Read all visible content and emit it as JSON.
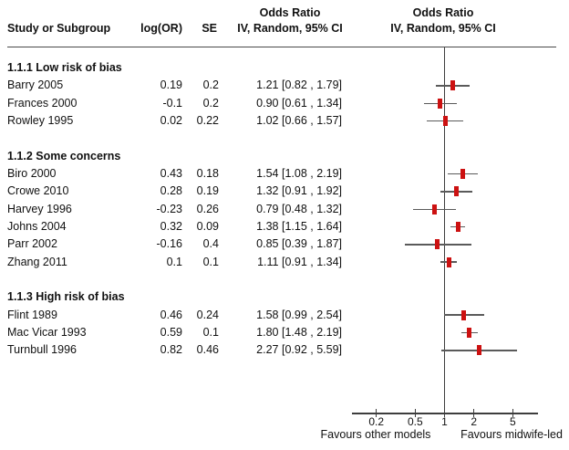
{
  "header": {
    "study": "Study or Subgroup",
    "log_or": "log(OR)",
    "se": "SE",
    "effect_line1": "Odds Ratio",
    "effect_line2": "IV, Random, 95% CI",
    "plot_line1": "Odds Ratio",
    "plot_line2": "IV, Random, 95% CI"
  },
  "colors": {
    "marker": "#cc1111",
    "ci_line": "#5a5a5a",
    "axis_line": "#3d3d3d",
    "header_rule": "#4a4a4a",
    "text": "#111111"
  },
  "chart_data": {
    "type": "forest",
    "effect_measure": "Odds Ratio",
    "model": "IV, Random, 95% CI",
    "x_scale": "log",
    "null_line": 1,
    "axis": {
      "ticks": [
        0.2,
        0.5,
        1,
        2,
        5
      ],
      "tick_labels": [
        "0.2",
        "0.5",
        "1",
        "2",
        "5"
      ],
      "favours_left": "Favours other models",
      "favours_right": "Favours midwife-led"
    },
    "groups": [
      {
        "label": "1.1.1 Low risk of bias",
        "studies": [
          {
            "name": "Barry 2005",
            "log_or": "0.19",
            "se": "0.2",
            "or": 1.21,
            "ci_low": 0.82,
            "ci_high": 1.79,
            "ci_text": "1.21 [0.82 , 1.79]"
          },
          {
            "name": "Frances 2000",
            "log_or": "-0.1",
            "se": "0.2",
            "or": 0.9,
            "ci_low": 0.61,
            "ci_high": 1.34,
            "ci_text": "0.90 [0.61 , 1.34]"
          },
          {
            "name": "Rowley 1995",
            "log_or": "0.02",
            "se": "0.22",
            "or": 1.02,
            "ci_low": 0.66,
            "ci_high": 1.57,
            "ci_text": "1.02 [0.66 , 1.57]"
          }
        ]
      },
      {
        "label": "1.1.2 Some concerns",
        "studies": [
          {
            "name": "Biro 2000",
            "log_or": "0.43",
            "se": "0.18",
            "or": 1.54,
            "ci_low": 1.08,
            "ci_high": 2.19,
            "ci_text": "1.54 [1.08 , 2.19]"
          },
          {
            "name": "Crowe 2010",
            "log_or": "0.28",
            "se": "0.19",
            "or": 1.32,
            "ci_low": 0.91,
            "ci_high": 1.92,
            "ci_text": "1.32 [0.91 , 1.92]"
          },
          {
            "name": "Harvey 1996",
            "log_or": "-0.23",
            "se": "0.26",
            "or": 0.79,
            "ci_low": 0.48,
            "ci_high": 1.32,
            "ci_text": "0.79 [0.48 , 1.32]"
          },
          {
            "name": "Johns 2004",
            "log_or": "0.32",
            "se": "0.09",
            "or": 1.38,
            "ci_low": 1.15,
            "ci_high": 1.64,
            "ci_text": "1.38 [1.15 , 1.64]"
          },
          {
            "name": "Parr 2002",
            "log_or": "-0.16",
            "se": "0.4",
            "or": 0.85,
            "ci_low": 0.39,
            "ci_high": 1.87,
            "ci_text": "0.85 [0.39 , 1.87]"
          },
          {
            "name": "Zhang 2011",
            "log_or": "0.1",
            "se": "0.1",
            "or": 1.11,
            "ci_low": 0.91,
            "ci_high": 1.34,
            "ci_text": "1.11 [0.91 , 1.34]"
          }
        ]
      },
      {
        "label": "1.1.3 High risk of bias",
        "studies": [
          {
            "name": "Flint 1989",
            "log_or": "0.46",
            "se": "0.24",
            "or": 1.58,
            "ci_low": 0.99,
            "ci_high": 2.54,
            "ci_text": "1.58 [0.99 , 2.54]"
          },
          {
            "name": "Mac Vicar 1993",
            "log_or": "0.59",
            "se": "0.1",
            "or": 1.8,
            "ci_low": 1.48,
            "ci_high": 2.19,
            "ci_text": "1.80 [1.48 , 2.19]"
          },
          {
            "name": "Turnbull 1996",
            "log_or": "0.82",
            "se": "0.46",
            "or": 2.27,
            "ci_low": 0.92,
            "ci_high": 5.59,
            "ci_text": "2.27 [0.92 , 5.59]"
          }
        ]
      }
    ]
  }
}
